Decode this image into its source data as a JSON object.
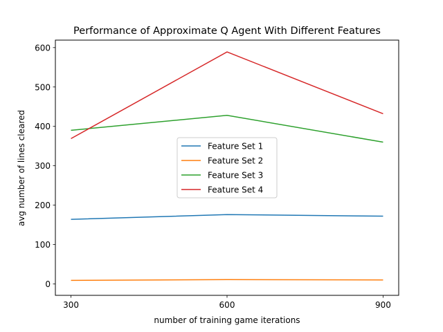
{
  "chart_data": {
    "type": "line",
    "title": "Performance of Approximate Q Agent With Different Features",
    "xlabel": "number of training game iterations",
    "ylabel": "avg number of lines cleared",
    "x": [
      300,
      600,
      900
    ],
    "xticks": [
      300,
      600,
      900
    ],
    "yticks": [
      0,
      100,
      200,
      300,
      400,
      500,
      600
    ],
    "xlim": [
      270,
      930
    ],
    "ylim": [
      -29,
      619
    ],
    "grid": false,
    "legend_position": "center",
    "series": [
      {
        "name": "Feature Set 1",
        "color": "#1f77b4",
        "values": [
          164,
          176,
          172
        ]
      },
      {
        "name": "Feature Set 2",
        "color": "#ff7f0e",
        "values": [
          9,
          11,
          10
        ]
      },
      {
        "name": "Feature Set 3",
        "color": "#2ca02c",
        "values": [
          390,
          428,
          360
        ]
      },
      {
        "name": "Feature Set 4",
        "color": "#d62728",
        "values": [
          369,
          589,
          432
        ]
      }
    ]
  }
}
